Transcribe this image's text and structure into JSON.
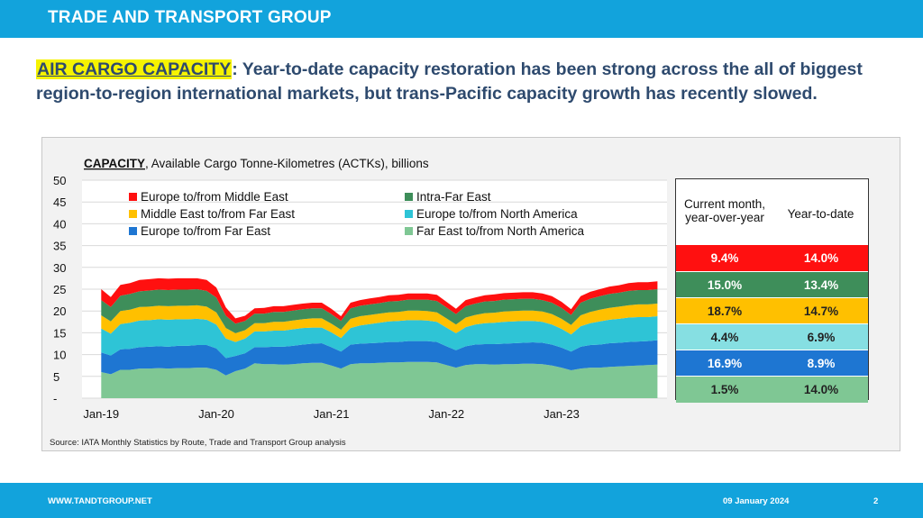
{
  "header": {
    "title": "TRADE AND TRANSPORT GROUP"
  },
  "headline": {
    "highlight": "AIR CARGO CAPACITY",
    "text": ":  Year-to-date capacity restoration has been strong across the all of biggest region-to-region international markets, but trans-Pacific capacity growth has recently slowed."
  },
  "footer": {
    "website": "WWW.TANDTGROUP.NET",
    "date": "09 January 2024",
    "page": "2"
  },
  "source": "Source: IATA Monthly Statistics by Route, Trade and Transport Group analysis",
  "table": {
    "headers": [
      "Current month, year-over-year",
      "Year-to-date"
    ],
    "rows": [
      {
        "series": "Europe to/from Middle East",
        "current": "9.4%",
        "ytd": "14.0%",
        "bg": "#ff1010",
        "fg": "#ffffff"
      },
      {
        "series": "Intra-Far East",
        "current": "15.0%",
        "ytd": "13.4%",
        "bg": "#3e8e5a",
        "fg": "#ffffff"
      },
      {
        "series": "Middle East to/from Far East",
        "current": "18.7%",
        "ytd": "14.7%",
        "bg": "#ffc000",
        "fg": "#222222"
      },
      {
        "series": "Europe to/from North America",
        "current": "4.4%",
        "ytd": "6.9%",
        "bg": "#86dfe2",
        "fg": "#222222"
      },
      {
        "series": "Europe to/from Far East",
        "current": "16.9%",
        "ytd": "8.9%",
        "bg": "#1e76d2",
        "fg": "#ffffff"
      },
      {
        "series": "Far East to/from North America",
        "current": "1.5%",
        "ytd": "14.0%",
        "bg": "#7fc794",
        "fg": "#222222"
      }
    ]
  },
  "chart_data": {
    "type": "area",
    "title_bold": "CAPACITY",
    "title": ", Available Cargo Tonne-Kilometres (ACTKs), billions",
    "yticks": [
      "50",
      "45",
      "40",
      "35",
      "30",
      "25",
      "20",
      "15",
      "10",
      "5",
      "-"
    ],
    "ylim": [
      0,
      50
    ],
    "xtick_labels": [
      "Jan-19",
      "Jan-20",
      "Jan-21",
      "Jan-22",
      "Jan-23"
    ],
    "xtick_positions": [
      "2019-01",
      "2020-01",
      "2021-01",
      "2022-01",
      "2023-01"
    ],
    "x_start": "2019-01",
    "x_end": "2023-11",
    "stacked": true,
    "grid": true,
    "legend_position": "top-left",
    "colors": [
      "#7fc794",
      "#1e76d2",
      "#2ec4d6",
      "#ffc000",
      "#3e8e5a",
      "#ff1010"
    ],
    "series": [
      {
        "name": "Far East to/from North America",
        "values": [
          6.0,
          5.5,
          6.5,
          6.5,
          6.8,
          6.8,
          6.9,
          6.8,
          6.9,
          6.9,
          7.0,
          7.0,
          6.5,
          5.2,
          6.2,
          6.8,
          8.0,
          7.8,
          7.8,
          7.7,
          7.8,
          8.0,
          8.1,
          8.1,
          7.5,
          6.8,
          7.8,
          8.0,
          8.0,
          8.1,
          8.2,
          8.2,
          8.3,
          8.3,
          8.3,
          8.2,
          7.6,
          7.0,
          7.6,
          7.8,
          7.8,
          7.7,
          7.8,
          7.8,
          7.9,
          7.9,
          7.8,
          7.5,
          7.0,
          6.4,
          6.8,
          7.0,
          7.0,
          7.2,
          7.3,
          7.4,
          7.5,
          7.6,
          7.7
        ]
      },
      {
        "name": "Europe to/from Far East",
        "values": [
          4.5,
          4.3,
          4.7,
          4.8,
          4.9,
          5.0,
          5.0,
          5.0,
          5.1,
          5.1,
          5.2,
          5.2,
          4.9,
          4.0,
          3.5,
          3.5,
          3.7,
          3.9,
          4.0,
          4.1,
          4.2,
          4.3,
          4.4,
          4.5,
          4.2,
          3.9,
          4.5,
          4.5,
          4.6,
          4.6,
          4.7,
          4.7,
          4.8,
          4.8,
          4.8,
          4.7,
          4.3,
          4.0,
          4.3,
          4.5,
          4.6,
          4.7,
          4.7,
          4.8,
          4.8,
          4.9,
          4.9,
          4.8,
          4.6,
          4.3,
          5.0,
          5.2,
          5.3,
          5.4,
          5.4,
          5.5,
          5.5,
          5.5,
          5.6
        ]
      },
      {
        "name": "Europe to/from North America",
        "values": [
          5.5,
          5.0,
          5.8,
          6.0,
          6.1,
          6.1,
          6.2,
          6.2,
          6.1,
          6.1,
          6.0,
          5.8,
          5.5,
          4.5,
          3.2,
          3.4,
          3.6,
          3.6,
          3.7,
          3.7,
          3.8,
          3.8,
          3.7,
          3.6,
          3.4,
          3.1,
          3.8,
          4.2,
          4.4,
          4.6,
          4.7,
          4.8,
          4.8,
          4.8,
          4.7,
          4.6,
          4.3,
          3.9,
          4.4,
          4.6,
          4.8,
          4.9,
          5.0,
          5.0,
          5.0,
          4.9,
          4.8,
          4.6,
          4.3,
          3.9,
          4.7,
          5.0,
          5.3,
          5.4,
          5.5,
          5.6,
          5.6,
          5.5,
          5.5
        ]
      },
      {
        "name": "Middle East to/from Far East",
        "values": [
          3.0,
          2.8,
          3.0,
          3.0,
          3.1,
          3.1,
          3.1,
          3.1,
          3.1,
          3.1,
          3.1,
          3.0,
          2.8,
          2.4,
          2.0,
          1.9,
          1.9,
          1.9,
          2.0,
          2.0,
          2.0,
          2.0,
          2.1,
          2.1,
          2.0,
          1.9,
          2.1,
          2.1,
          2.1,
          2.1,
          2.1,
          2.1,
          2.2,
          2.2,
          2.2,
          2.2,
          2.1,
          2.0,
          2.2,
          2.2,
          2.3,
          2.3,
          2.4,
          2.4,
          2.4,
          2.4,
          2.4,
          2.4,
          2.3,
          2.2,
          2.5,
          2.6,
          2.7,
          2.7,
          2.8,
          2.8,
          2.9,
          2.9,
          2.9
        ]
      },
      {
        "name": "Intra-Far East",
        "values": [
          3.5,
          3.3,
          3.5,
          3.6,
          3.6,
          3.7,
          3.7,
          3.7,
          3.7,
          3.7,
          3.7,
          3.6,
          3.4,
          2.8,
          2.2,
          2.1,
          2.2,
          2.2,
          2.3,
          2.3,
          2.3,
          2.3,
          2.3,
          2.3,
          2.2,
          2.0,
          2.4,
          2.4,
          2.4,
          2.4,
          2.5,
          2.5,
          2.5,
          2.5,
          2.6,
          2.6,
          2.5,
          2.4,
          2.6,
          2.6,
          2.7,
          2.7,
          2.7,
          2.7,
          2.7,
          2.7,
          2.6,
          2.6,
          2.5,
          2.3,
          2.9,
          3.0,
          3.1,
          3.2,
          3.2,
          3.3,
          3.3,
          3.3,
          3.3
        ]
      },
      {
        "name": "Europe to/from Middle East",
        "values": [
          2.5,
          2.3,
          2.5,
          2.5,
          2.6,
          2.6,
          2.6,
          2.6,
          2.6,
          2.6,
          2.5,
          2.5,
          2.3,
          1.9,
          1.2,
          1.2,
          1.2,
          1.3,
          1.3,
          1.3,
          1.3,
          1.3,
          1.3,
          1.3,
          1.2,
          1.1,
          1.3,
          1.3,
          1.4,
          1.4,
          1.4,
          1.4,
          1.4,
          1.4,
          1.4,
          1.4,
          1.3,
          1.2,
          1.4,
          1.4,
          1.4,
          1.5,
          1.5,
          1.5,
          1.5,
          1.5,
          1.5,
          1.5,
          1.4,
          1.3,
          1.5,
          1.6,
          1.6,
          1.7,
          1.7,
          1.8,
          1.8,
          1.8,
          1.8
        ]
      }
    ],
    "legend_order": [
      "Europe to/from Middle East",
      "Intra-Far East",
      "Middle East to/from Far East",
      "Europe to/from North America",
      "Europe to/from Far East",
      "Far East to/from North America"
    ]
  }
}
